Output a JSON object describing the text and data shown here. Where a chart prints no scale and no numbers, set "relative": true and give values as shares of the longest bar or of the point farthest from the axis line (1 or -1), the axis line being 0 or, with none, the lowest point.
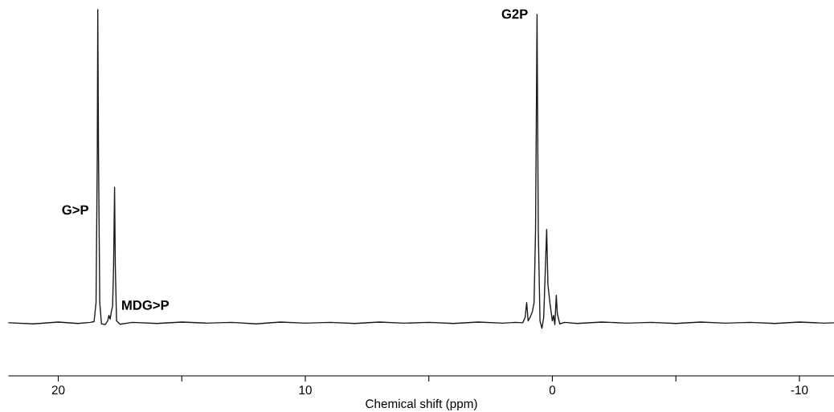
{
  "chart_data": {
    "type": "line",
    "xlabel": "Chemical shift (ppm)",
    "relative": true,
    "color": "#1a1a1a",
    "xlim": [
      22.0,
      -11.4
    ],
    "xticks": [
      20,
      {
        "value": 15,
        "label": null
      },
      10,
      {
        "value": 5,
        "label": null
      },
      0,
      {
        "value": -5,
        "label": null
      },
      -10
    ],
    "tick_labels": "x",
    "grid": false,
    "legend": false,
    "marker": "none",
    "line_style": "solid",
    "x": [
      22.0,
      21.0,
      20.0,
      19.2,
      18.7,
      18.55,
      18.47,
      18.42,
      18.4,
      18.37,
      18.32,
      18.25,
      18.1,
      18.0,
      17.95,
      17.9,
      17.85,
      17.8,
      17.76,
      17.72,
      17.69,
      17.64,
      17.5,
      17.0,
      16.0,
      15.0,
      14.0,
      13.0,
      12.0,
      11.0,
      10.0,
      9.0,
      8.0,
      7.0,
      6.0,
      5.0,
      4.0,
      3.0,
      2.0,
      1.5,
      1.2,
      1.1,
      1.04,
      0.98,
      0.9,
      0.81,
      0.74,
      0.68,
      0.62,
      0.57,
      0.5,
      0.42,
      0.35,
      0.28,
      0.23,
      0.18,
      0.1,
      0.0,
      -0.05,
      -0.1,
      -0.16,
      -0.2,
      -0.3,
      -0.5,
      -1,
      -2,
      -3,
      -4,
      -5,
      -6,
      -7,
      -8,
      -9,
      -10,
      -11,
      -11.4
    ],
    "values": [
      0.145,
      0.142,
      0.147,
      0.143,
      0.146,
      0.148,
      0.2,
      0.6,
      1.0,
      0.6,
      0.2,
      0.142,
      0.14,
      0.15,
      0.165,
      0.155,
      0.175,
      0.19,
      0.3,
      0.515,
      0.3,
      0.15,
      0.141,
      0.146,
      0.143,
      0.147,
      0.144,
      0.146,
      0.142,
      0.147,
      0.144,
      0.146,
      0.143,
      0.147,
      0.144,
      0.146,
      0.143,
      0.147,
      0.144,
      0.146,
      0.145,
      0.16,
      0.2,
      0.15,
      0.16,
      0.175,
      0.2,
      0.4,
      0.987,
      0.4,
      0.15,
      0.13,
      0.16,
      0.3,
      0.4,
      0.25,
      0.2,
      0.15,
      0.165,
      0.14,
      0.22,
      0.17,
      0.142,
      0.146,
      0.143,
      0.147,
      0.144,
      0.146,
      0.143,
      0.147,
      0.144,
      0.146,
      0.143,
      0.147,
      0.144,
      0.145
    ],
    "annotations": [
      {
        "text": "G>P",
        "x": 18.4,
        "y": 0.45
      },
      {
        "text": "MDG>P",
        "x": 17.72,
        "y": 0.19
      },
      {
        "text": "G2P",
        "x": 0.62,
        "y": 0.985
      }
    ]
  }
}
